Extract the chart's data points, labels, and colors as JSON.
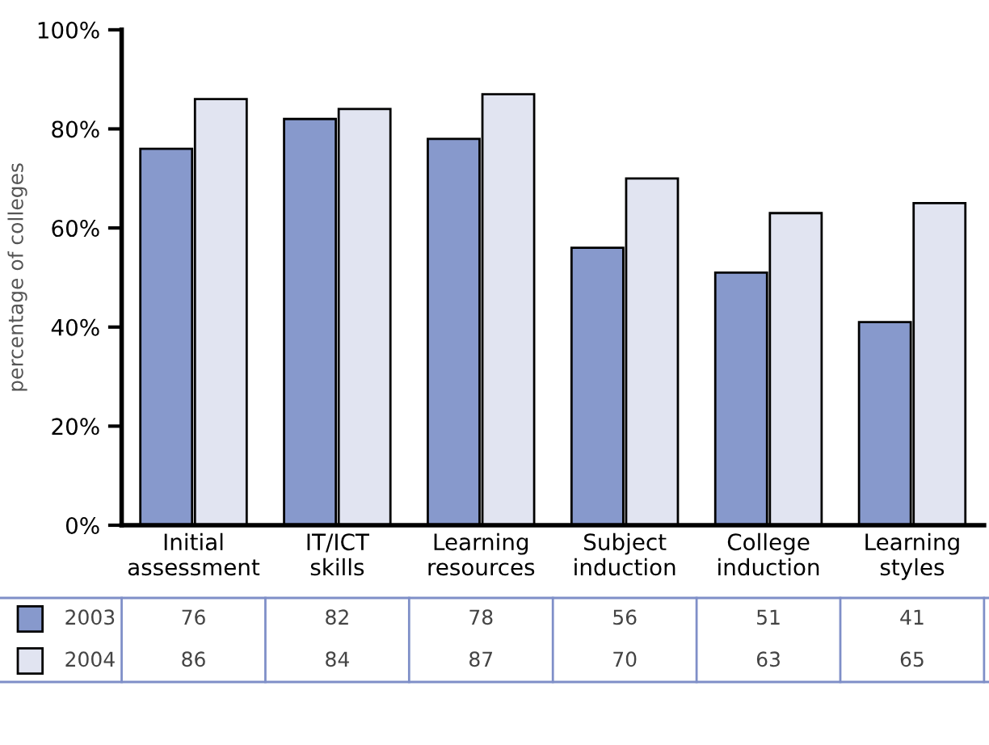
{
  "chart_data": {
    "type": "bar",
    "ylabel": "percentage of colleges",
    "categories": [
      "Initial\nassessment",
      "IT/ICT\nskills",
      "Learning\nresources",
      "Subject\ninduction",
      "College\ninduction",
      "Learning\nstyles"
    ],
    "series": [
      {
        "name": "2003",
        "color": "#8799cc",
        "values": [
          76,
          82,
          78,
          56,
          51,
          41
        ]
      },
      {
        "name": "2004",
        "color": "#e1e4f1",
        "values": [
          86,
          84,
          87,
          70,
          63,
          65
        ]
      }
    ],
    "ylim": [
      0,
      100
    ],
    "yticks": [
      {
        "value": 0,
        "label": "0%"
      },
      {
        "value": 20,
        "label": "20%"
      },
      {
        "value": 40,
        "label": "40%"
      },
      {
        "value": 60,
        "label": "60%"
      },
      {
        "value": 80,
        "label": "80%"
      },
      {
        "value": 100,
        "label": "100%"
      }
    ],
    "grid": false,
    "legend": "bottom",
    "data_labels": true
  }
}
